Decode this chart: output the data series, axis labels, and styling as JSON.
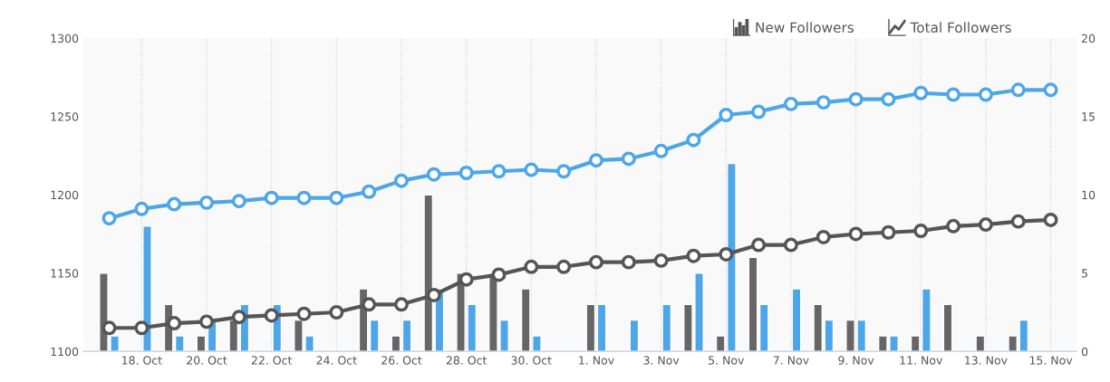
{
  "chart_data": {
    "type": "bar",
    "categories": [
      null,
      "18. Oct",
      null,
      "20. Oct",
      null,
      "22. Oct",
      null,
      "24. Oct",
      null,
      "26. Oct",
      null,
      "28. Oct",
      null,
      "30. Oct",
      null,
      "1. Nov",
      null,
      "3. Nov",
      null,
      "5. Nov",
      null,
      "7. Nov",
      null,
      "9. Nov",
      null,
      "11. Nov",
      null,
      "13. Nov",
      null,
      "15. Nov"
    ],
    "series": [
      {
        "axis": "y2",
        "color": "#666666",
        "values": [
          5,
          null,
          3,
          1,
          2,
          null,
          2,
          null,
          4,
          1,
          10,
          5,
          5,
          4,
          null,
          3,
          null,
          null,
          3,
          1,
          6,
          null,
          3,
          2,
          1,
          1,
          3,
          1,
          1,
          null
        ]
      },
      {
        "axis": "y2",
        "color": "#4da6e8",
        "values": [
          1,
          8,
          1,
          2,
          3,
          3,
          1,
          null,
          2,
          2,
          4,
          3,
          2,
          1,
          null,
          3,
          2,
          3,
          5,
          12,
          3,
          4,
          2,
          2,
          1,
          4,
          null,
          null,
          2,
          null
        ]
      },
      {
        "type": "line",
        "axis": "y",
        "color": "#555555",
        "marker": "circle",
        "values": [
          1115,
          1115,
          1118,
          1119,
          1122,
          1123,
          1124,
          1125,
          1130,
          1130,
          1136,
          1146,
          1149,
          1154,
          1154,
          1157,
          1157,
          1158,
          1161,
          1162,
          1168,
          1168,
          1173,
          1175,
          1176,
          1177,
          1180,
          1181,
          1183,
          1184
        ]
      },
      {
        "type": "line",
        "axis": "y",
        "color": "#4da6e8",
        "marker": "circle",
        "values": [
          1185,
          1191,
          1194,
          1195,
          1196,
          1198,
          1198,
          1198,
          1202,
          1209,
          1213,
          1214,
          1215,
          1216,
          1215,
          1222,
          1223,
          1228,
          1235,
          1251,
          1253,
          1258,
          1259,
          1261,
          1261,
          1265,
          1264,
          1264,
          1267,
          1267
        ]
      }
    ],
    "ylim": [
      1100,
      1300
    ],
    "yticks": [
      1100,
      1150,
      1200,
      1250,
      1300
    ],
    "y2lim": [
      0,
      20
    ],
    "y2ticks": [
      0,
      5,
      10,
      15,
      20
    ],
    "grid": "x",
    "annotations": [
      "New Followers",
      "Total Followers"
    ]
  }
}
